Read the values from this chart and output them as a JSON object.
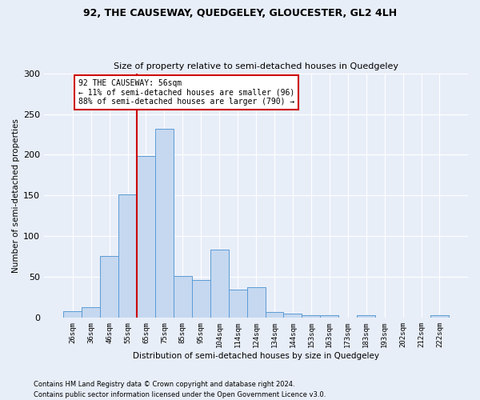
{
  "title": "92, THE CAUSEWAY, QUEDGELEY, GLOUCESTER, GL2 4LH",
  "subtitle": "Size of property relative to semi-detached houses in Quedgeley",
  "xlabel": "Distribution of semi-detached houses by size in Quedgeley",
  "ylabel": "Number of semi-detached properties",
  "footnote1": "Contains HM Land Registry data © Crown copyright and database right 2024.",
  "footnote2": "Contains public sector information licensed under the Open Government Licence v3.0.",
  "bar_labels": [
    "26sqm",
    "36sqm",
    "46sqm",
    "55sqm",
    "65sqm",
    "75sqm",
    "85sqm",
    "95sqm",
    "104sqm",
    "114sqm",
    "124sqm",
    "134sqm",
    "144sqm",
    "153sqm",
    "163sqm",
    "173sqm",
    "183sqm",
    "193sqm",
    "202sqm",
    "212sqm",
    "222sqm"
  ],
  "bar_values": [
    8,
    13,
    76,
    151,
    199,
    232,
    51,
    46,
    84,
    35,
    38,
    7,
    5,
    3,
    3,
    0,
    3,
    0,
    0,
    0,
    3
  ],
  "bar_color": "#c5d8f0",
  "bar_edge_color": "#5b9bd5",
  "annotation_title": "92 THE CAUSEWAY: 56sqm",
  "annotation_line1": "← 11% of semi-detached houses are smaller (96)",
  "annotation_line2": "88% of semi-detached houses are larger (790) →",
  "annotation_box_color": "white",
  "annotation_box_edge_color": "#cc0000",
  "vline_color": "#cc0000",
  "vline_index": 3.5,
  "ylim": [
    0,
    300
  ],
  "yticks": [
    0,
    50,
    100,
    150,
    200,
    250,
    300
  ],
  "background_color": "#e8eef8",
  "grid_color": "#ffffff",
  "title_fontsize": 9,
  "subtitle_fontsize": 8
}
